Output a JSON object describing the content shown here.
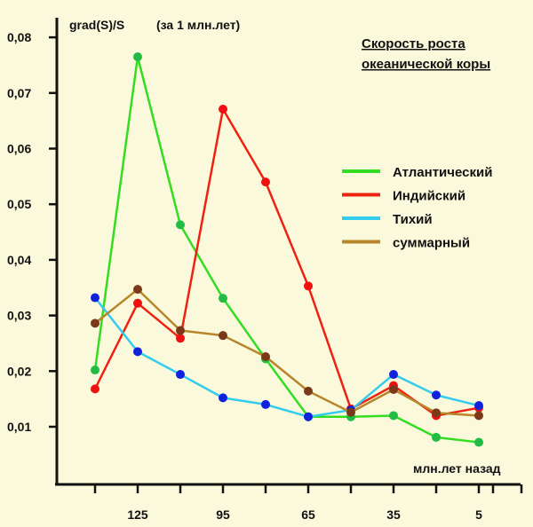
{
  "chart_data": {
    "type": "line",
    "title": [
      "Скорость роста",
      "океанической коры"
    ],
    "ylabel": "grad(S)/S",
    "ylabel_note": "(за 1 млн.лет)",
    "xlabel": "млн.лет назад",
    "x": [
      140,
      125,
      110,
      95,
      80,
      65,
      50,
      35,
      20,
      5
    ],
    "x_ticks": [
      140,
      125,
      110,
      95,
      80,
      65,
      50,
      35,
      20,
      5,
      0,
      -10
    ],
    "x_tick_labels": [
      {
        "value": 125,
        "label": "125"
      },
      {
        "value": 95,
        "label": "95"
      },
      {
        "value": 65,
        "label": "65"
      },
      {
        "value": 35,
        "label": "35"
      },
      {
        "value": 5,
        "label": "5"
      }
    ],
    "y_ticks": [
      {
        "value": 0.01,
        "label": "0,01"
      },
      {
        "value": 0.02,
        "label": "0,02"
      },
      {
        "value": 0.03,
        "label": "0,03"
      },
      {
        "value": 0.04,
        "label": "0,04"
      },
      {
        "value": 0.05,
        "label": "0,05"
      },
      {
        "value": 0.06,
        "label": "0,06"
      },
      {
        "value": 0.07,
        "label": "0,07"
      },
      {
        "value": 0.08,
        "label": "0,08"
      }
    ],
    "ylim": [
      0,
      0.085
    ],
    "xlim": [
      150,
      -15
    ],
    "x_reversed": true,
    "grid": false,
    "legend_position": "right",
    "series": [
      {
        "name": "Атлантический",
        "color": "#33dd22",
        "marker_color": "#22bb44",
        "values": [
          0.0202,
          0.0765,
          0.0463,
          0.0331,
          0.0222,
          0.0118,
          0.0118,
          0.012,
          0.0081,
          0.0072
        ]
      },
      {
        "name": "Индийский",
        "color": "#ee2211",
        "marker_color": "#ee1111",
        "values": [
          0.0168,
          0.0322,
          0.0259,
          0.0671,
          0.054,
          0.0353,
          0.0132,
          0.0174,
          0.012,
          0.0134
        ]
      },
      {
        "name": "Тихий",
        "color": "#33ccee",
        "marker_color": "#1122dd",
        "values": [
          0.0332,
          0.0235,
          0.0194,
          0.0152,
          0.014,
          0.0118,
          0.013,
          0.0194,
          0.0157,
          0.0138
        ]
      },
      {
        "name": "суммарный",
        "color": "#b8862a",
        "marker_color": "#7a3a1a",
        "values": [
          0.0286,
          0.0347,
          0.0273,
          0.0264,
          0.0226,
          0.0164,
          0.0126,
          0.0167,
          0.0125,
          0.012
        ]
      }
    ]
  }
}
